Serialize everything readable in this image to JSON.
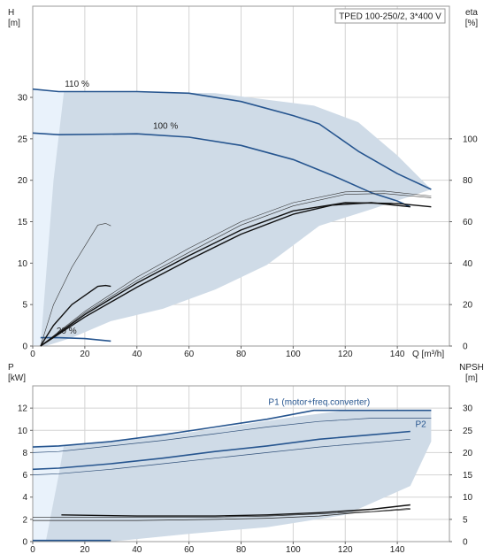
{
  "chart_data": [
    {
      "type": "line",
      "title": "TPED 100-250/2, 3*400 V",
      "xlabel": "Q [m³/h]",
      "ylabel_left": "H\n[m]",
      "ylabel_right": "eta\n[%]",
      "xlim": [
        0,
        160
      ],
      "ylim": [
        0,
        41
      ],
      "ylim_right": [
        0,
        164
      ],
      "x_ticks": [
        0,
        20,
        40,
        60,
        80,
        100,
        120,
        140
      ],
      "y_ticks": [
        0,
        5,
        10,
        15,
        20,
        25,
        30
      ],
      "y_ticks_right": [
        0,
        20,
        40,
        60,
        80,
        100
      ],
      "grid": true,
      "colors": {
        "area": "#cfdbe7",
        "light": "#e9f2fb",
        "curve": "#26558f",
        "eff": "#111111"
      },
      "operating_area": [
        [
          0,
          0
        ],
        [
          5,
          0
        ],
        [
          15,
          1
        ],
        [
          30,
          3
        ],
        [
          50,
          4.5
        ],
        [
          70,
          6.8
        ],
        [
          90,
          9.8
        ],
        [
          110,
          14.5
        ],
        [
          130,
          16.5
        ],
        [
          153,
          18.9
        ],
        [
          140,
          23
        ],
        [
          125,
          27
        ],
        [
          108,
          29
        ],
        [
          70,
          30.5
        ],
        [
          25,
          30.7
        ],
        [
          10,
          30.7
        ],
        [
          0,
          31
        ]
      ],
      "light_band": [
        [
          0,
          0
        ],
        [
          3,
          0
        ],
        [
          8,
          20
        ],
        [
          12,
          30.7
        ],
        [
          0,
          31
        ]
      ],
      "series": [
        {
          "name": "110 %",
          "label_at": [
            17,
            31.3
          ],
          "kind": "curve",
          "points": [
            [
              0,
              31
            ],
            [
              10,
              30.7
            ],
            [
              40,
              30.7
            ],
            [
              60,
              30.5
            ],
            [
              80,
              29.5
            ],
            [
              100,
              27.8
            ],
            [
              110,
              26.8
            ],
            [
              125,
              23.5
            ],
            [
              140,
              20.8
            ],
            [
              153,
              18.9
            ]
          ]
        },
        {
          "name": "100 %",
          "label_at": [
            51,
            26.2
          ],
          "kind": "curve",
          "points": [
            [
              0,
              25.7
            ],
            [
              10,
              25.5
            ],
            [
              40,
              25.6
            ],
            [
              60,
              25.2
            ],
            [
              80,
              24.2
            ],
            [
              100,
              22.5
            ],
            [
              115,
              20.6
            ],
            [
              130,
              18.5
            ],
            [
              140,
              17.5
            ],
            [
              145,
              16.8
            ]
          ]
        },
        {
          "name": "20 %",
          "label_at": [
            13,
            1.5
          ],
          "kind": "curve",
          "points": [
            [
              3,
              1
            ],
            [
              10,
              1
            ],
            [
              20,
              0.9
            ],
            [
              30,
              0.6
            ]
          ]
        },
        {
          "name": "",
          "kind": "eff",
          "points": [
            [
              3,
              0
            ],
            [
              8,
              5
            ],
            [
              15,
              9.5
            ],
            [
              25,
              14.6
            ],
            [
              28,
              14.8
            ],
            [
              30,
              14.5
            ]
          ]
        },
        {
          "name": "",
          "kind": "eff_thick",
          "points": [
            [
              3,
              0
            ],
            [
              8,
              2.5
            ],
            [
              15,
              5
            ],
            [
              25,
              7.2
            ],
            [
              28,
              7.3
            ],
            [
              30,
              7.2
            ]
          ]
        },
        {
          "name": "",
          "kind": "eff",
          "points": [
            [
              3,
              0
            ],
            [
              20,
              4.2
            ],
            [
              40,
              8.3
            ],
            [
              60,
              11.8
            ],
            [
              80,
              15
            ],
            [
              100,
              17.3
            ],
            [
              120,
              18.6
            ],
            [
              135,
              18.7
            ],
            [
              153,
              18.1
            ]
          ]
        },
        {
          "name": "",
          "kind": "eff",
          "points": [
            [
              3,
              0
            ],
            [
              20,
              4
            ],
            [
              40,
              7.9
            ],
            [
              60,
              11.3
            ],
            [
              80,
              14.6
            ],
            [
              100,
              16.9
            ],
            [
              120,
              18.3
            ],
            [
              135,
              18.4
            ],
            [
              153,
              17.9
            ]
          ]
        },
        {
          "name": "",
          "kind": "eff_thick",
          "points": [
            [
              3,
              0
            ],
            [
              20,
              3.8
            ],
            [
              40,
              7.6
            ],
            [
              60,
              10.9
            ],
            [
              80,
              14
            ],
            [
              100,
              16.3
            ],
            [
              120,
              17.3
            ],
            [
              140,
              17.2
            ],
            [
              153,
              16.8
            ]
          ]
        },
        {
          "name": "",
          "kind": "eff_thick",
          "points": [
            [
              3,
              0
            ],
            [
              20,
              3.5
            ],
            [
              40,
              7.1
            ],
            [
              60,
              10.4
            ],
            [
              80,
              13.5
            ],
            [
              100,
              15.9
            ],
            [
              115,
              17
            ],
            [
              130,
              17.3
            ],
            [
              145,
              16.8
            ]
          ]
        }
      ]
    },
    {
      "type": "line",
      "title": "",
      "xlabel": "",
      "ylabel_left": "P\n[kW]",
      "ylabel_right": "NPSH\n[m]",
      "xlim": [
        0,
        160
      ],
      "ylim": [
        0,
        14
      ],
      "ylim_right": [
        0,
        35
      ],
      "x_ticks": [
        0,
        20,
        40,
        60,
        80,
        100,
        120,
        140
      ],
      "y_ticks": [
        0,
        2,
        4,
        6,
        8,
        10,
        12
      ],
      "y_ticks_right": [
        0,
        5,
        10,
        15,
        20,
        25,
        30
      ],
      "grid": true,
      "operating_area": [
        [
          0,
          0
        ],
        [
          30,
          0
        ],
        [
          60,
          0.7
        ],
        [
          90,
          1.3
        ],
        [
          120,
          2.4
        ],
        [
          145,
          5
        ],
        [
          153,
          9
        ],
        [
          153,
          11.8
        ],
        [
          120,
          11.8
        ],
        [
          100,
          11.2
        ],
        [
          80,
          10.5
        ],
        [
          60,
          9.8
        ],
        [
          40,
          9.2
        ],
        [
          20,
          8.7
        ],
        [
          0,
          8.6
        ]
      ],
      "light_band": [
        [
          0,
          0
        ],
        [
          5,
          0
        ],
        [
          10,
          6
        ],
        [
          12,
          8.7
        ],
        [
          0,
          8.6
        ]
      ],
      "series": [
        {
          "name": "P1 (motor+freq.converter)",
          "label_at": [
            110,
            12.3
          ],
          "kind": "curve",
          "points": [
            [
              0,
              8.5
            ],
            [
              10,
              8.6
            ],
            [
              30,
              9
            ],
            [
              50,
              9.6
            ],
            [
              70,
              10.3
            ],
            [
              90,
              11
            ],
            [
              108,
              11.8
            ],
            [
              153,
              11.8
            ]
          ]
        },
        {
          "name": "P2",
          "label_at": [
            149,
            10.3
          ],
          "kind": "curve",
          "points": [
            [
              0,
              6.5
            ],
            [
              10,
              6.6
            ],
            [
              30,
              7
            ],
            [
              50,
              7.5
            ],
            [
              70,
              8.1
            ],
            [
              90,
              8.6
            ],
            [
              110,
              9.2
            ],
            [
              130,
              9.6
            ],
            [
              145,
              9.9
            ]
          ]
        },
        {
          "name": "",
          "kind": "thin",
          "points": [
            [
              0,
              8
            ],
            [
              10,
              8.1
            ],
            [
              30,
              8.6
            ],
            [
              50,
              9.1
            ],
            [
              70,
              9.7
            ],
            [
              90,
              10.3
            ],
            [
              110,
              10.8
            ],
            [
              130,
              11.1
            ],
            [
              153,
              11.1
            ]
          ]
        },
        {
          "name": "",
          "kind": "thin",
          "points": [
            [
              0,
              6
            ],
            [
              10,
              6.1
            ],
            [
              30,
              6.5
            ],
            [
              50,
              7
            ],
            [
              70,
              7.5
            ],
            [
              90,
              8
            ],
            [
              110,
              8.5
            ],
            [
              130,
              8.9
            ],
            [
              145,
              9.2
            ]
          ]
        },
        {
          "name": "",
          "kind": "npsh",
          "points": [
            [
              11,
              2.4
            ],
            [
              40,
              2.3
            ],
            [
              70,
              2.3
            ],
            [
              90,
              2.4
            ],
            [
              110,
              2.6
            ],
            [
              130,
              2.9
            ],
            [
              145,
              3.3
            ]
          ]
        },
        {
          "name": "",
          "kind": "npsh_thin",
          "points": [
            [
              0,
              2.2
            ],
            [
              40,
              2.2
            ],
            [
              70,
              2.2
            ],
            [
              90,
              2.3
            ],
            [
              110,
              2.5
            ],
            [
              130,
              2.7
            ],
            [
              145,
              3.0
            ]
          ]
        },
        {
          "name": "",
          "kind": "npsh_thin",
          "points": [
            [
              0,
              1.9
            ],
            [
              40,
              1.9
            ],
            [
              70,
              2.0
            ],
            [
              90,
              2.1
            ],
            [
              110,
              2.3
            ],
            [
              125,
              2.6
            ],
            [
              145,
              2.9
            ]
          ]
        },
        {
          "name": "",
          "kind": "npsh_base",
          "points": [
            [
              0,
              0.1
            ],
            [
              30,
              0.1
            ]
          ]
        }
      ]
    }
  ]
}
